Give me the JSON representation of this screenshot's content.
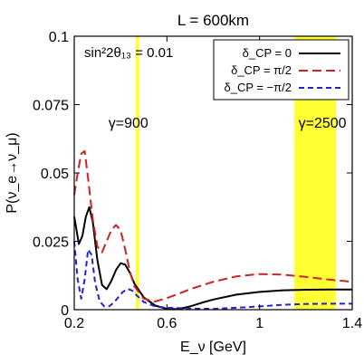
{
  "chart_data": {
    "type": "line",
    "title": "L = 600km",
    "xlabel": "E_ν [GeV]",
    "ylabel": "P(ν_e→ν_μ)",
    "xlim": [
      0.2,
      1.4
    ],
    "ylim": [
      0,
      0.1
    ],
    "xticks": [
      0.2,
      0.6,
      1.0,
      1.4
    ],
    "xtick_labels": [
      "0.2",
      "0.6",
      "1",
      "1.4"
    ],
    "yticks": [
      0,
      0.025,
      0.05,
      0.075,
      0.1
    ],
    "ytick_labels": [
      "0",
      "0.025",
      "0.05",
      "0.075",
      "0.1"
    ],
    "annotation": "sin²2θ₁₃ = 0.01",
    "bands": [
      {
        "label": "γ=900",
        "x_range": [
          0.465,
          0.48
        ],
        "color": "#ffff33"
      },
      {
        "label": "γ=2500",
        "x_range": [
          1.15,
          1.33
        ],
        "color": "#ffff33"
      }
    ],
    "legend_position": "top-right",
    "series": [
      {
        "name": "δ_CP = 0",
        "color": "#000000",
        "style": "solid",
        "x": [
          0.2,
          0.22,
          0.235,
          0.25,
          0.265,
          0.28,
          0.3,
          0.32,
          0.34,
          0.36,
          0.38,
          0.4,
          0.42,
          0.44,
          0.46,
          0.5,
          0.55,
          0.6,
          0.65,
          0.7,
          0.75,
          0.8,
          0.9,
          1.0,
          1.1,
          1.2,
          1.3,
          1.4
        ],
        "y": [
          0.034,
          0.024,
          0.027,
          0.034,
          0.0375,
          0.032,
          0.018,
          0.009,
          0.0075,
          0.0105,
          0.0145,
          0.017,
          0.0165,
          0.0135,
          0.0095,
          0.0045,
          0.0015,
          0.0003,
          0.0002,
          0.0012,
          0.0025,
          0.0037,
          0.0055,
          0.0065,
          0.0071,
          0.0073,
          0.0074,
          0.0074
        ]
      },
      {
        "name": "δ_CP = π/2",
        "color": "#cc2222",
        "style": "dashed",
        "x": [
          0.2,
          0.215,
          0.23,
          0.245,
          0.26,
          0.28,
          0.3,
          0.32,
          0.34,
          0.36,
          0.38,
          0.4,
          0.42,
          0.44,
          0.46,
          0.5,
          0.55,
          0.6,
          0.65,
          0.7,
          0.8,
          0.9,
          1.0,
          1.1,
          1.2,
          1.3,
          1.4
        ],
        "y": [
          0.042,
          0.05,
          0.057,
          0.058,
          0.048,
          0.033,
          0.023,
          0.021,
          0.025,
          0.029,
          0.031,
          0.029,
          0.022,
          0.014,
          0.0085,
          0.004,
          0.003,
          0.0042,
          0.0058,
          0.0075,
          0.0102,
          0.0122,
          0.013,
          0.0128,
          0.012,
          0.011,
          0.0102
        ]
      },
      {
        "name": "δ_CP = −π/2",
        "color": "#2222cc",
        "style": "dashed",
        "x": [
          0.2,
          0.215,
          0.23,
          0.245,
          0.26,
          0.275,
          0.29,
          0.31,
          0.33,
          0.35,
          0.37,
          0.39,
          0.41,
          0.43,
          0.45,
          0.47,
          0.5,
          0.55,
          0.6,
          0.65,
          0.7,
          0.8,
          0.9,
          1.0,
          1.1,
          1.2,
          1.3,
          1.4
        ],
        "y": [
          0.025,
          0.011,
          0.004,
          0.011,
          0.022,
          0.02,
          0.01,
          0.003,
          0.0012,
          0.0012,
          0.0025,
          0.0045,
          0.0065,
          0.0076,
          0.007,
          0.0052,
          0.0028,
          0.0012,
          0.0007,
          0.0006,
          0.0004,
          0.0003,
          0.0007,
          0.0012,
          0.0018,
          0.0021,
          0.0022,
          0.0022
        ]
      }
    ]
  }
}
